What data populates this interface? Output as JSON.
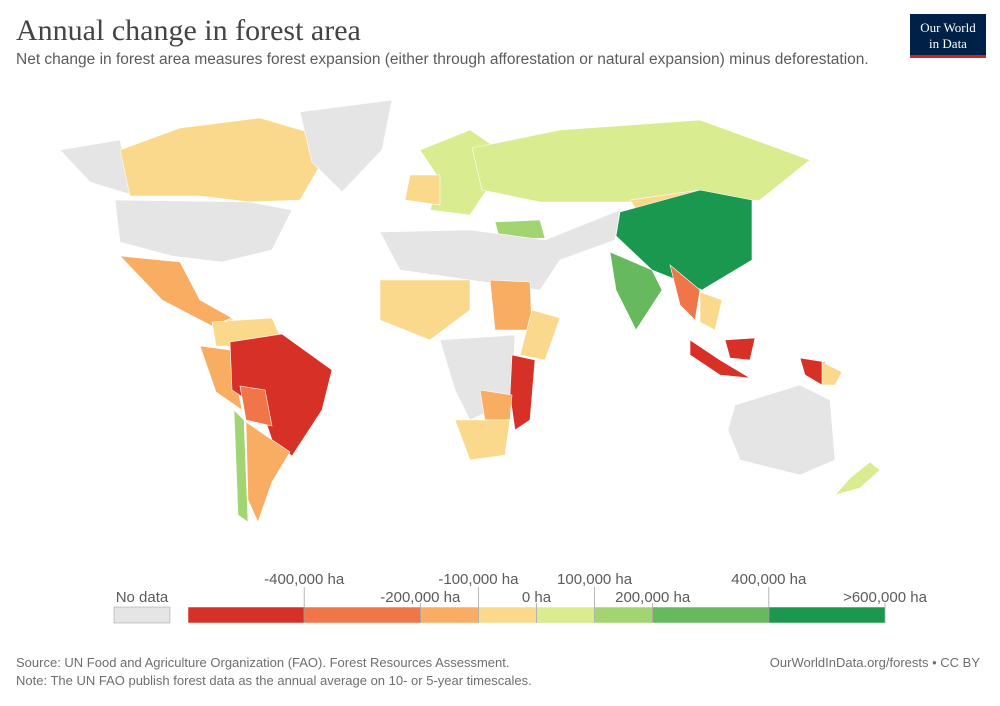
{
  "header": {
    "title": "Annual change in forest area",
    "subtitle": "Net change in forest area measures forest expansion (either through afforestation or natural expansion) minus deforestation.",
    "logo": [
      "Our World",
      "in Data"
    ]
  },
  "legend": {
    "no_data": "No data",
    "xlim": [
      -600000,
      600000
    ],
    "xticks": [
      {
        "value": -400000,
        "label": "-400,000 ha"
      },
      {
        "value": -200000,
        "label": "-200,000 ha"
      },
      {
        "value": -100000,
        "label": "-100,000 ha"
      },
      {
        "value": 0,
        "label": "0 ha"
      },
      {
        "value": 100000,
        "label": "100,000 ha"
      },
      {
        "value": 200000,
        "label": "200,000 ha"
      },
      {
        "value": 400000,
        "label": "400,000 ha"
      },
      {
        "value": 600000,
        "label": ">600,000 ha"
      }
    ],
    "colors": [
      "#d73027",
      "#f07548",
      "#f8ad62",
      "#fbd98c",
      "#d9ec90",
      "#a2d572",
      "#67b95e",
      "#1a9850"
    ]
  },
  "footer": {
    "source": "Source: UN Food and Agriculture Organization (FAO). Forest Resources Assessment.",
    "note": "Note: The UN FAO publish forest data as the annual average on 10- or 5-year timescales.",
    "credit": "OurWorldInData.org/forests • CC BY"
  }
}
